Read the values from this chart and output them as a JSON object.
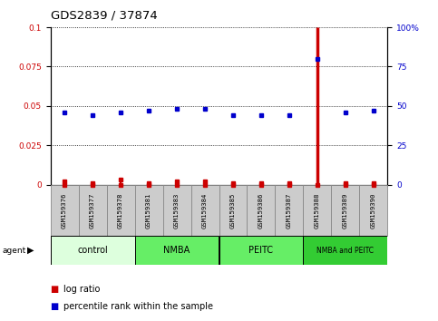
{
  "title": "GDS2839 / 37874",
  "samples": [
    "GSM159376",
    "GSM159377",
    "GSM159378",
    "GSM159381",
    "GSM159383",
    "GSM159384",
    "GSM159385",
    "GSM159386",
    "GSM159387",
    "GSM159388",
    "GSM159389",
    "GSM159390"
  ],
  "log_ratio": [
    0.002,
    0.001,
    0.003,
    0.001,
    0.002,
    0.002,
    0.001,
    0.001,
    0.001,
    0.1,
    0.001,
    0.001
  ],
  "percentile_rank": [
    46,
    44,
    46,
    47,
    48,
    48,
    44,
    44,
    44,
    80,
    46,
    47
  ],
  "groups": [
    {
      "label": "control",
      "start": 0,
      "end": 3,
      "color": "#ddffdd"
    },
    {
      "label": "NMBA",
      "start": 3,
      "end": 6,
      "color": "#66ee66"
    },
    {
      "label": "PEITC",
      "start": 6,
      "end": 9,
      "color": "#66ee66"
    },
    {
      "label": "NMBA and PEITC",
      "start": 9,
      "end": 12,
      "color": "#33cc33"
    }
  ],
  "ylim_left": [
    0,
    0.1
  ],
  "ylim_right": [
    0,
    100
  ],
  "yticks_left": [
    0,
    0.025,
    0.05,
    0.075,
    0.1
  ],
  "yticks_right": [
    0,
    25,
    50,
    75,
    100
  ],
  "highlight_index": 9,
  "left_color": "#cc0000",
  "right_color": "#0000cc",
  "bar_line_color": "#cc0000",
  "dot_color": "#0000cc",
  "sample_box_color": "#cccccc",
  "box_edge_color": "#888888"
}
